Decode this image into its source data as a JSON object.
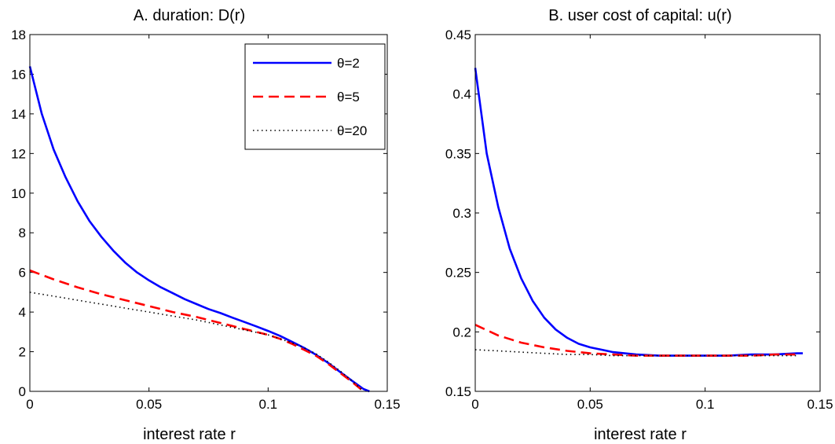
{
  "chart_data": [
    {
      "type": "line",
      "title": "A. duration: D(r)",
      "xlabel": "interest rate r",
      "ylabel": "",
      "xlim": [
        0,
        0.15
      ],
      "ylim": [
        0,
        18
      ],
      "xticks": [
        0,
        0.05,
        0.1,
        0.15
      ],
      "xtick_labels": [
        "0",
        "0.05",
        "0.1",
        "0.15"
      ],
      "yticks": [
        0,
        2,
        4,
        6,
        8,
        10,
        12,
        14,
        16,
        18
      ],
      "ytick_labels": [
        "0",
        "2",
        "4",
        "6",
        "8",
        "10",
        "12",
        "14",
        "16",
        "18"
      ],
      "grid": false,
      "legend": {
        "position": "top-right",
        "entries": [
          "θ=2",
          "θ=5",
          "θ=20"
        ]
      },
      "series": [
        {
          "name": "θ=2",
          "color": "#0000ff",
          "style": "solid",
          "x": [
            0,
            0.005,
            0.01,
            0.015,
            0.02,
            0.025,
            0.03,
            0.035,
            0.04,
            0.045,
            0.05,
            0.055,
            0.06,
            0.065,
            0.07,
            0.075,
            0.08,
            0.085,
            0.09,
            0.095,
            0.1,
            0.105,
            0.11,
            0.115,
            0.12,
            0.125,
            0.13,
            0.135,
            0.14,
            0.1425
          ],
          "y": [
            16.4,
            14.0,
            12.2,
            10.8,
            9.6,
            8.6,
            7.8,
            7.1,
            6.5,
            6.0,
            5.6,
            5.25,
            4.95,
            4.65,
            4.4,
            4.15,
            3.95,
            3.72,
            3.5,
            3.28,
            3.05,
            2.8,
            2.5,
            2.2,
            1.85,
            1.45,
            1.0,
            0.55,
            0.12,
            0.0
          ]
        },
        {
          "name": "θ=5",
          "color": "#ff0000",
          "style": "dashed",
          "x": [
            0,
            0.01,
            0.02,
            0.03,
            0.04,
            0.05,
            0.06,
            0.07,
            0.08,
            0.09,
            0.1,
            0.105,
            0.11,
            0.115,
            0.12,
            0.125,
            0.13,
            0.135,
            0.14
          ],
          "y": [
            6.1,
            5.65,
            5.25,
            4.9,
            4.6,
            4.3,
            4.0,
            3.75,
            3.45,
            3.15,
            2.85,
            2.65,
            2.4,
            2.1,
            1.8,
            1.4,
            0.95,
            0.5,
            0.0
          ]
        },
        {
          "name": "θ=20",
          "color": "#000000",
          "style": "dotted",
          "x": [
            0,
            0.01,
            0.02,
            0.03,
            0.04,
            0.05,
            0.06,
            0.07,
            0.08,
            0.09,
            0.1,
            0.105,
            0.11,
            0.115,
            0.12,
            0.125,
            0.13,
            0.135,
            0.14
          ],
          "y": [
            5.0,
            4.8,
            4.6,
            4.4,
            4.2,
            4.0,
            3.8,
            3.6,
            3.35,
            3.1,
            2.85,
            2.65,
            2.45,
            2.2,
            1.9,
            1.5,
            1.05,
            0.55,
            0.0
          ]
        }
      ]
    },
    {
      "type": "line",
      "title": "B. user cost of capital: u(r)",
      "xlabel": "interest rate r",
      "ylabel": "",
      "xlim": [
        0,
        0.15
      ],
      "ylim": [
        0.15,
        0.45
      ],
      "xticks": [
        0,
        0.05,
        0.1,
        0.15
      ],
      "xtick_labels": [
        "0",
        "0.05",
        "0.1",
        "0.15"
      ],
      "yticks": [
        0.15,
        0.2,
        0.25,
        0.3,
        0.35,
        0.4,
        0.45
      ],
      "ytick_labels": [
        "0.15",
        "0.2",
        "0.25",
        "0.3",
        "0.35",
        "0.4",
        "0.45"
      ],
      "grid": false,
      "series": [
        {
          "name": "θ=2",
          "color": "#0000ff",
          "style": "solid",
          "x": [
            0,
            0.005,
            0.01,
            0.015,
            0.02,
            0.025,
            0.03,
            0.035,
            0.04,
            0.045,
            0.05,
            0.06,
            0.07,
            0.08,
            0.09,
            0.1,
            0.11,
            0.12,
            0.13,
            0.14,
            0.1425
          ],
          "y": [
            0.422,
            0.35,
            0.305,
            0.27,
            0.245,
            0.226,
            0.212,
            0.202,
            0.195,
            0.19,
            0.187,
            0.183,
            0.181,
            0.18,
            0.18,
            0.18,
            0.18,
            0.181,
            0.181,
            0.182,
            0.182
          ]
        },
        {
          "name": "θ=5",
          "color": "#ff0000",
          "style": "dashed",
          "x": [
            0,
            0.01,
            0.02,
            0.03,
            0.04,
            0.05,
            0.06,
            0.07,
            0.08,
            0.09,
            0.1,
            0.11,
            0.12,
            0.13,
            0.14
          ],
          "y": [
            0.206,
            0.197,
            0.191,
            0.187,
            0.184,
            0.182,
            0.181,
            0.18,
            0.18,
            0.18,
            0.18,
            0.18,
            0.18,
            0.181,
            0.181
          ]
        },
        {
          "name": "θ=20",
          "color": "#000000",
          "style": "dotted",
          "x": [
            0,
            0.01,
            0.02,
            0.03,
            0.04,
            0.05,
            0.06,
            0.07,
            0.08,
            0.09,
            0.1,
            0.11,
            0.12,
            0.13,
            0.14
          ],
          "y": [
            0.185,
            0.184,
            0.183,
            0.182,
            0.181,
            0.181,
            0.18,
            0.18,
            0.18,
            0.18,
            0.18,
            0.18,
            0.18,
            0.18,
            0.18
          ]
        }
      ]
    }
  ]
}
